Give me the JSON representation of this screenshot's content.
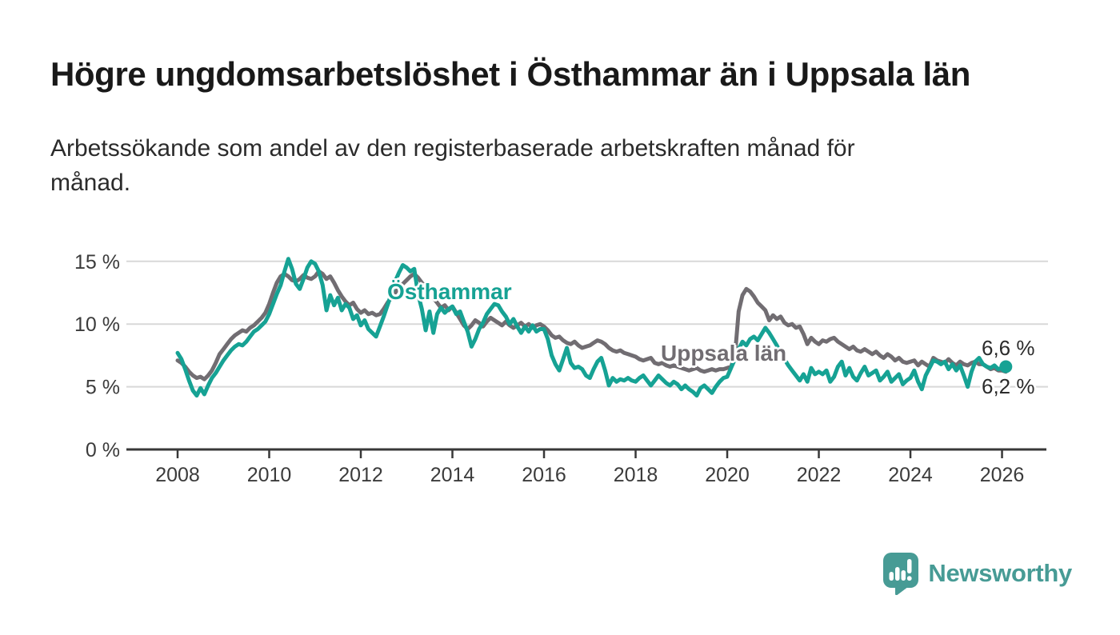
{
  "header": {
    "title": "Högre ungdomsarbetslöshet i Östhammar än i Uppsala län",
    "subtitle_lines": [
      "Arbetssökande som andel av den registerbaserade arbetskraften månad för",
      "månad."
    ]
  },
  "branding": {
    "logo_text": "Newsworthy",
    "logo_color": "#479b95",
    "logo_icon": "bar-chart-speech-bubble-icon"
  },
  "colors": {
    "osthammar": "#16a294",
    "uppsala": "#716d72",
    "gridline": "#d8d8d8",
    "axis": "#383838",
    "value_label": "#2b2b2b",
    "background": "#ffffff"
  },
  "chart_data": {
    "type": "line",
    "title": "Högre ungdomsarbetslöshet i Östhammar än i Uppsala län",
    "subtitle": "Arbetssökande som andel av den registerbaserade arbetskraften månad för månad.",
    "x_unit": "month",
    "x_start": "2008-01",
    "x_end": "2026-02",
    "xlabel": "",
    "ylabel": "",
    "ylim": [
      0,
      16.6
    ],
    "grid": "horizontal",
    "legend_position": "inline-labels",
    "x_tick_labels": [
      "2008",
      "2010",
      "2012",
      "2014",
      "2016",
      "2018",
      "2020",
      "2022",
      "2024",
      "2026"
    ],
    "y_ticks": [
      {
        "value": 0,
        "label": "0 %"
      },
      {
        "value": 5,
        "label": "5 %"
      },
      {
        "value": 10,
        "label": "10 %"
      },
      {
        "value": 15,
        "label": "15 %"
      }
    ],
    "series": [
      {
        "name": "Östhammar",
        "color": "#16a294",
        "end_label": "6,6 %",
        "end_value": 6.6,
        "end_dot": true,
        "values": [
          7.7,
          7.2,
          6.4,
          5.5,
          4.7,
          4.3,
          4.9,
          4.4,
          5.1,
          5.7,
          6.1,
          6.6,
          7.1,
          7.5,
          7.9,
          8.2,
          8.4,
          8.3,
          8.6,
          9.0,
          9.4,
          9.6,
          9.9,
          10.2,
          10.8,
          11.6,
          12.4,
          13.1,
          14.2,
          15.2,
          14.4,
          13.2,
          12.8,
          13.6,
          14.5,
          15.0,
          14.8,
          14.2,
          13.1,
          11.1,
          12.3,
          11.5,
          12.1,
          11.1,
          11.6,
          11.3,
          10.4,
          10.7,
          9.9,
          10.3,
          9.6,
          9.3,
          9.0,
          9.8,
          10.6,
          11.5,
          12.4,
          13.4,
          14.1,
          14.7,
          14.5,
          14.2,
          14.4,
          12.4,
          11.2,
          9.5,
          11.0,
          9.3,
          10.8,
          11.3,
          10.9,
          11.2,
          11.4,
          10.8,
          11.0,
          10.2,
          9.4,
          8.2,
          8.8,
          9.6,
          10.1,
          10.8,
          11.2,
          11.6,
          11.5,
          11.0,
          10.6,
          10.0,
          10.4,
          9.8,
          9.3,
          9.8,
          9.4,
          9.9,
          9.4,
          9.6,
          9.6,
          8.8,
          7.5,
          6.8,
          6.3,
          7.2,
          8.1,
          6.9,
          6.5,
          6.6,
          6.4,
          5.9,
          5.7,
          6.4,
          7.0,
          7.3,
          6.3,
          5.1,
          5.7,
          5.4,
          5.6,
          5.5,
          5.7,
          5.5,
          5.4,
          5.7,
          5.9,
          5.5,
          5.1,
          5.5,
          5.9,
          5.6,
          5.3,
          5.1,
          5.4,
          5.2,
          4.8,
          5.1,
          4.8,
          4.6,
          4.3,
          4.9,
          5.1,
          4.8,
          4.5,
          5.0,
          5.4,
          5.7,
          5.8,
          6.5,
          7.2,
          8.0,
          8.6,
          8.3,
          8.8,
          9.0,
          8.7,
          9.2,
          9.7,
          9.3,
          8.8,
          8.3,
          7.7,
          7.2,
          6.7,
          6.3,
          5.9,
          5.5,
          6.0,
          5.4,
          6.5,
          6.0,
          6.2,
          6.0,
          6.3,
          5.4,
          5.8,
          6.6,
          7.0,
          5.9,
          6.5,
          5.8,
          5.5,
          6.1,
          6.6,
          5.9,
          6.1,
          6.3,
          5.5,
          5.8,
          6.2,
          5.4,
          5.7,
          6.0,
          5.2,
          5.5,
          5.7,
          6.3,
          5.4,
          4.8,
          5.9,
          6.5,
          7.1,
          7.0,
          6.8,
          7.0,
          6.4,
          6.8,
          6.3,
          6.7,
          5.9,
          5.0,
          6.2,
          7.0,
          7.3,
          6.8,
          6.6,
          6.5,
          6.7,
          6.4,
          6.5,
          6.6
        ]
      },
      {
        "name": "Uppsala län",
        "color": "#716d72",
        "end_label": "6,2 %",
        "end_value": 6.2,
        "end_dot": false,
        "values": [
          7.1,
          6.9,
          6.6,
          6.2,
          5.9,
          5.7,
          5.8,
          5.6,
          5.9,
          6.3,
          6.9,
          7.6,
          8.0,
          8.4,
          8.8,
          9.1,
          9.3,
          9.5,
          9.4,
          9.7,
          9.9,
          10.2,
          10.5,
          10.9,
          11.6,
          12.5,
          13.3,
          13.8,
          14.0,
          13.8,
          13.5,
          13.4,
          13.6,
          13.9,
          13.7,
          13.6,
          13.8,
          14.2,
          14.0,
          13.6,
          13.8,
          13.3,
          12.7,
          12.2,
          11.8,
          11.5,
          11.7,
          11.2,
          10.9,
          11.1,
          10.8,
          10.9,
          10.7,
          10.8,
          11.2,
          11.7,
          12.1,
          12.5,
          12.9,
          13.2,
          13.5,
          13.8,
          14.0,
          13.7,
          13.3,
          12.9,
          12.5,
          12.1,
          11.7,
          11.3,
          11.5,
          11.1,
          11.4,
          10.9,
          10.4,
          9.9,
          9.6,
          9.9,
          10.3,
          10.1,
          9.8,
          10.2,
          10.5,
          10.3,
          10.1,
          9.9,
          10.2,
          9.9,
          9.7,
          9.9,
          10.1,
          9.8,
          10.0,
          9.7,
          9.9,
          10.0,
          9.8,
          9.5,
          9.1,
          8.9,
          9.0,
          8.7,
          8.5,
          8.4,
          8.6,
          8.3,
          8.1,
          8.2,
          8.3,
          8.5,
          8.7,
          8.6,
          8.4,
          8.1,
          7.9,
          7.8,
          7.9,
          7.7,
          7.6,
          7.5,
          7.4,
          7.2,
          7.1,
          7.2,
          7.3,
          6.9,
          6.8,
          6.9,
          6.7,
          6.6,
          6.7,
          6.6,
          6.5,
          6.4,
          6.3,
          6.4,
          6.5,
          6.3,
          6.2,
          6.3,
          6.4,
          6.3,
          6.4,
          6.4,
          6.5,
          6.6,
          7.4,
          11.0,
          12.3,
          12.8,
          12.6,
          12.2,
          11.7,
          11.4,
          11.1,
          10.3,
          10.7,
          10.4,
          10.6,
          10.1,
          9.9,
          10.0,
          9.7,
          9.8,
          9.2,
          8.4,
          8.9,
          8.6,
          8.4,
          8.7,
          8.6,
          8.8,
          8.9,
          8.6,
          8.4,
          8.2,
          8.0,
          8.2,
          7.9,
          7.8,
          8.0,
          7.8,
          7.6,
          7.8,
          7.5,
          7.3,
          7.6,
          7.4,
          7.1,
          7.3,
          7.0,
          6.9,
          7.0,
          7.1,
          6.7,
          7.0,
          6.8,
          6.6,
          7.3,
          7.1,
          7.0,
          6.9,
          7.2,
          6.9,
          6.7,
          7.0,
          6.8,
          6.7,
          6.9,
          7.0,
          6.8,
          6.8,
          6.6,
          6.4,
          6.5,
          6.3,
          6.3,
          6.2
        ]
      }
    ]
  }
}
